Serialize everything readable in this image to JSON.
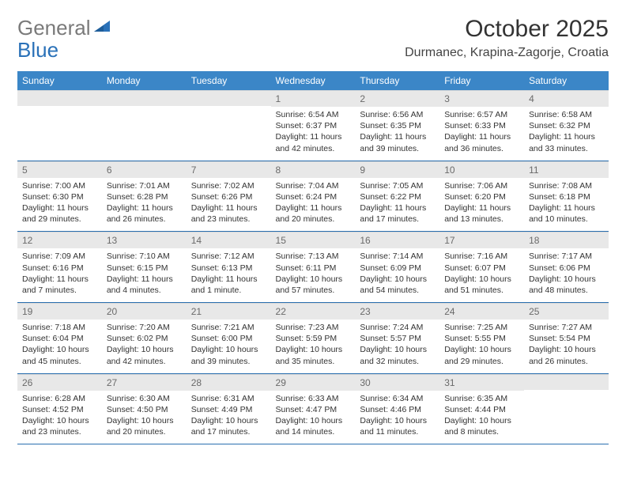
{
  "logo": {
    "text1": "General",
    "text2": "Blue"
  },
  "title": "October 2025",
  "location": "Durmanec, Krapina-Zagorje, Croatia",
  "colors": {
    "header_bg": "#3b86c7",
    "header_fg": "#ffffff",
    "daybar_bg": "#e8e8e8",
    "daybar_fg": "#6a6a6a",
    "row_border": "#2a6fb0",
    "logo_gray": "#7a7a7a",
    "logo_blue": "#2a71b8"
  },
  "weekdays": [
    "Sunday",
    "Monday",
    "Tuesday",
    "Wednesday",
    "Thursday",
    "Friday",
    "Saturday"
  ],
  "weeks": [
    [
      {
        "n": "",
        "sr": "",
        "ss": "",
        "dl": ""
      },
      {
        "n": "",
        "sr": "",
        "ss": "",
        "dl": ""
      },
      {
        "n": "",
        "sr": "",
        "ss": "",
        "dl": ""
      },
      {
        "n": "1",
        "sr": "Sunrise: 6:54 AM",
        "ss": "Sunset: 6:37 PM",
        "dl": "Daylight: 11 hours and 42 minutes."
      },
      {
        "n": "2",
        "sr": "Sunrise: 6:56 AM",
        "ss": "Sunset: 6:35 PM",
        "dl": "Daylight: 11 hours and 39 minutes."
      },
      {
        "n": "3",
        "sr": "Sunrise: 6:57 AM",
        "ss": "Sunset: 6:33 PM",
        "dl": "Daylight: 11 hours and 36 minutes."
      },
      {
        "n": "4",
        "sr": "Sunrise: 6:58 AM",
        "ss": "Sunset: 6:32 PM",
        "dl": "Daylight: 11 hours and 33 minutes."
      }
    ],
    [
      {
        "n": "5",
        "sr": "Sunrise: 7:00 AM",
        "ss": "Sunset: 6:30 PM",
        "dl": "Daylight: 11 hours and 29 minutes."
      },
      {
        "n": "6",
        "sr": "Sunrise: 7:01 AM",
        "ss": "Sunset: 6:28 PM",
        "dl": "Daylight: 11 hours and 26 minutes."
      },
      {
        "n": "7",
        "sr": "Sunrise: 7:02 AM",
        "ss": "Sunset: 6:26 PM",
        "dl": "Daylight: 11 hours and 23 minutes."
      },
      {
        "n": "8",
        "sr": "Sunrise: 7:04 AM",
        "ss": "Sunset: 6:24 PM",
        "dl": "Daylight: 11 hours and 20 minutes."
      },
      {
        "n": "9",
        "sr": "Sunrise: 7:05 AM",
        "ss": "Sunset: 6:22 PM",
        "dl": "Daylight: 11 hours and 17 minutes."
      },
      {
        "n": "10",
        "sr": "Sunrise: 7:06 AM",
        "ss": "Sunset: 6:20 PM",
        "dl": "Daylight: 11 hours and 13 minutes."
      },
      {
        "n": "11",
        "sr": "Sunrise: 7:08 AM",
        "ss": "Sunset: 6:18 PM",
        "dl": "Daylight: 11 hours and 10 minutes."
      }
    ],
    [
      {
        "n": "12",
        "sr": "Sunrise: 7:09 AM",
        "ss": "Sunset: 6:16 PM",
        "dl": "Daylight: 11 hours and 7 minutes."
      },
      {
        "n": "13",
        "sr": "Sunrise: 7:10 AM",
        "ss": "Sunset: 6:15 PM",
        "dl": "Daylight: 11 hours and 4 minutes."
      },
      {
        "n": "14",
        "sr": "Sunrise: 7:12 AM",
        "ss": "Sunset: 6:13 PM",
        "dl": "Daylight: 11 hours and 1 minute."
      },
      {
        "n": "15",
        "sr": "Sunrise: 7:13 AM",
        "ss": "Sunset: 6:11 PM",
        "dl": "Daylight: 10 hours and 57 minutes."
      },
      {
        "n": "16",
        "sr": "Sunrise: 7:14 AM",
        "ss": "Sunset: 6:09 PM",
        "dl": "Daylight: 10 hours and 54 minutes."
      },
      {
        "n": "17",
        "sr": "Sunrise: 7:16 AM",
        "ss": "Sunset: 6:07 PM",
        "dl": "Daylight: 10 hours and 51 minutes."
      },
      {
        "n": "18",
        "sr": "Sunrise: 7:17 AM",
        "ss": "Sunset: 6:06 PM",
        "dl": "Daylight: 10 hours and 48 minutes."
      }
    ],
    [
      {
        "n": "19",
        "sr": "Sunrise: 7:18 AM",
        "ss": "Sunset: 6:04 PM",
        "dl": "Daylight: 10 hours and 45 minutes."
      },
      {
        "n": "20",
        "sr": "Sunrise: 7:20 AM",
        "ss": "Sunset: 6:02 PM",
        "dl": "Daylight: 10 hours and 42 minutes."
      },
      {
        "n": "21",
        "sr": "Sunrise: 7:21 AM",
        "ss": "Sunset: 6:00 PM",
        "dl": "Daylight: 10 hours and 39 minutes."
      },
      {
        "n": "22",
        "sr": "Sunrise: 7:23 AM",
        "ss": "Sunset: 5:59 PM",
        "dl": "Daylight: 10 hours and 35 minutes."
      },
      {
        "n": "23",
        "sr": "Sunrise: 7:24 AM",
        "ss": "Sunset: 5:57 PM",
        "dl": "Daylight: 10 hours and 32 minutes."
      },
      {
        "n": "24",
        "sr": "Sunrise: 7:25 AM",
        "ss": "Sunset: 5:55 PM",
        "dl": "Daylight: 10 hours and 29 minutes."
      },
      {
        "n": "25",
        "sr": "Sunrise: 7:27 AM",
        "ss": "Sunset: 5:54 PM",
        "dl": "Daylight: 10 hours and 26 minutes."
      }
    ],
    [
      {
        "n": "26",
        "sr": "Sunrise: 6:28 AM",
        "ss": "Sunset: 4:52 PM",
        "dl": "Daylight: 10 hours and 23 minutes."
      },
      {
        "n": "27",
        "sr": "Sunrise: 6:30 AM",
        "ss": "Sunset: 4:50 PM",
        "dl": "Daylight: 10 hours and 20 minutes."
      },
      {
        "n": "28",
        "sr": "Sunrise: 6:31 AM",
        "ss": "Sunset: 4:49 PM",
        "dl": "Daylight: 10 hours and 17 minutes."
      },
      {
        "n": "29",
        "sr": "Sunrise: 6:33 AM",
        "ss": "Sunset: 4:47 PM",
        "dl": "Daylight: 10 hours and 14 minutes."
      },
      {
        "n": "30",
        "sr": "Sunrise: 6:34 AM",
        "ss": "Sunset: 4:46 PM",
        "dl": "Daylight: 10 hours and 11 minutes."
      },
      {
        "n": "31",
        "sr": "Sunrise: 6:35 AM",
        "ss": "Sunset: 4:44 PM",
        "dl": "Daylight: 10 hours and 8 minutes."
      },
      {
        "n": "",
        "sr": "",
        "ss": "",
        "dl": ""
      }
    ]
  ]
}
